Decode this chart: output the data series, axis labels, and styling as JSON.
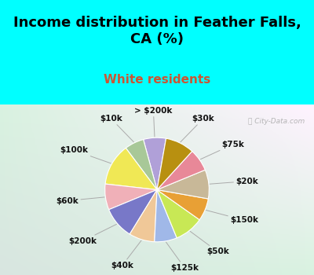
{
  "title": "Income distribution in Feather Falls,\nCA (%)",
  "subtitle": "White residents",
  "title_color": "#000000",
  "subtitle_color": "#cc5533",
  "bg_cyan": "#00ffff",
  "bg_chart_gradient_colors": [
    "#e8f5ee",
    "#c8e8d8"
  ],
  "watermark": "City-Data.com",
  "labels": [
    "> $200k",
    "$10k",
    "$100k",
    "$60k",
    "$200k",
    "$40k",
    "$125k",
    "$50k",
    "$150k",
    "$20k",
    "$75k",
    "$30k"
  ],
  "sizes": [
    7,
    6,
    13,
    8,
    10,
    8,
    7,
    9,
    7,
    9,
    7,
    9
  ],
  "colors": [
    "#b0a0d8",
    "#a8c898",
    "#f0e855",
    "#f0b0b8",
    "#7878c8",
    "#f0c898",
    "#a0b8e8",
    "#c8e855",
    "#e8a035",
    "#c8b898",
    "#e88898",
    "#b89010"
  ],
  "startangle": 80,
  "label_fontsize": 7.5,
  "label_color": "#111111",
  "line_color": "#aaaaaa",
  "title_fontsize": 13,
  "subtitle_fontsize": 11
}
